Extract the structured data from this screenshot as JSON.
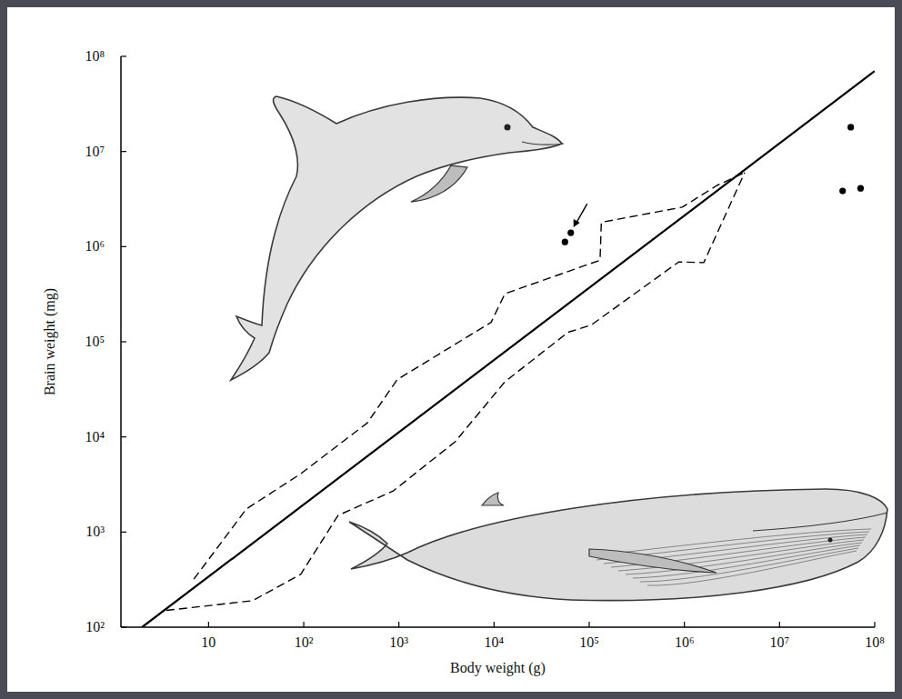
{
  "chart_data": {
    "type": "scatter",
    "x_label": "Body weight (g)",
    "y_label": "Brain weight (mg)",
    "log": true,
    "xlim": [
      1.2,
      100000000
    ],
    "ylim": [
      100,
      100000000
    ],
    "xticks": [
      10,
      {
        "value": 100,
        "label": "10²"
      },
      {
        "value": 1000,
        "label": "10³"
      },
      {
        "value": 10000,
        "label": "10⁴"
      },
      {
        "value": 100000,
        "label": "10⁵"
      },
      {
        "value": 1000000,
        "label": "10⁶"
      },
      {
        "value": 10000000,
        "label": "10⁷"
      },
      {
        "value": 100000000,
        "label": "10⁸"
      }
    ],
    "yticks": [
      {
        "value": 100,
        "label": "10²"
      },
      {
        "value": 1000,
        "label": "10³"
      },
      {
        "value": 10000,
        "label": "10⁴"
      },
      {
        "value": 100000,
        "label": "10⁵"
      },
      {
        "value": 1000000,
        "label": "10⁶"
      },
      {
        "value": 10000000,
        "label": "10⁷"
      },
      {
        "value": 100000000,
        "label": "10⁸"
      }
    ],
    "series": [
      {
        "type": "line",
        "line_style": "solid",
        "color": "#000000",
        "x": [
          2,
          100000000
        ],
        "values": [
          100,
          70000000
        ]
      },
      {
        "type": "line",
        "line_style": "dashed",
        "color": "#000000",
        "x": [
          7,
          25,
          93,
          465,
          960,
          9300,
          13000,
          130000,
          134000,
          950000,
          2200000,
          4300000
        ],
        "values": [
          320,
          1750,
          4100,
          14000,
          40000,
          160000,
          320000,
          720000,
          1800000,
          2600000,
          4400000,
          6000000
        ]
      },
      {
        "type": "line",
        "line_style": "dashed",
        "color": "#000000",
        "x": [
          3.6,
          29,
          93,
          230,
          870,
          3900,
          13000,
          60000,
          105000,
          870000,
          1600000,
          4300000
        ],
        "values": [
          150,
          190,
          360,
          1500,
          2700,
          8900,
          38000,
          126000,
          150000,
          690000,
          680000,
          6000000
        ]
      },
      {
        "type": "scatter",
        "marker": "circle",
        "color": "#000000",
        "x": [
          55600,
          64000,
          56000000,
          46000000,
          71000000
        ],
        "values": [
          1120000,
          1400000,
          18000000,
          3850000,
          4100000
        ]
      }
    ]
  }
}
